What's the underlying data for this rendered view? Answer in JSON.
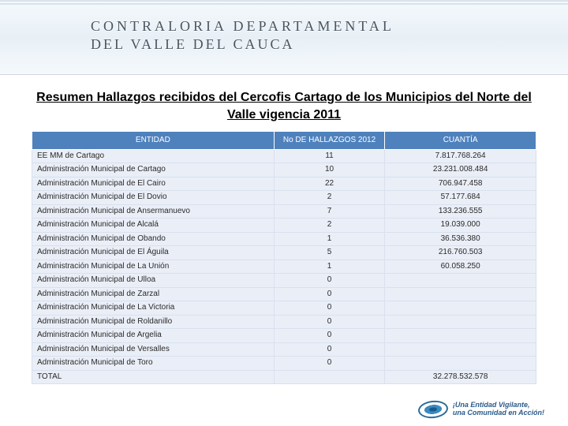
{
  "banner": {
    "line1": "CONTRALORIA DEPARTAMENTAL",
    "line2": "DEL VALLE DEL CAUCA"
  },
  "title": "Resumen Hallazgos recibidos del Cercofis Cartago de los Municipios del Norte del Valle vigencia 2011",
  "table": {
    "headers": {
      "entidad": "ENTIDAD",
      "num": "No DE HALLAZGOS 2012",
      "cuantia": "CUANTÍA"
    },
    "header_bg": "#4f81bd",
    "header_color": "#ffffff",
    "row_bg": "#eaeef7",
    "border_color": "#d9e1ee",
    "font_size": 10,
    "rows": [
      {
        "entidad": "EE MM de Cartago",
        "num": "11",
        "cuantia": "7.817.768.264"
      },
      {
        "entidad": "Administración Municipal de Cartago",
        "num": "10",
        "cuantia": "23.231.008.484"
      },
      {
        "entidad": "Administración Municipal de El Cairo",
        "num": "22",
        "cuantia": "706.947.458"
      },
      {
        "entidad": "Administración Municipal de El Dovio",
        "num": "2",
        "cuantia": "57.177.684"
      },
      {
        "entidad": "Administración Municipal de Ansermanuevo",
        "num": "7",
        "cuantia": "133.236.555"
      },
      {
        "entidad": "Administración Municipal de Alcalá",
        "num": "2",
        "cuantia": "19.039.000"
      },
      {
        "entidad": "Administración Municipal de Obando",
        "num": "1",
        "cuantia": "36.536.380"
      },
      {
        "entidad": "Administración Municipal de El Águila",
        "num": "5",
        "cuantia": "216.760.503"
      },
      {
        "entidad": "Administración Municipal de La Unión",
        "num": "1",
        "cuantia": "60.058.250"
      },
      {
        "entidad": "Administración Municipal de Ulloa",
        "num": "0",
        "cuantia": ""
      },
      {
        "entidad": "Administración Municipal de Zarzal",
        "num": "0",
        "cuantia": ""
      },
      {
        "entidad": "Administración Municipal de La Victoria",
        "num": "0",
        "cuantia": ""
      },
      {
        "entidad": "Administración Municipal de Roldanillo",
        "num": "0",
        "cuantia": ""
      },
      {
        "entidad": "Administración Municipal de Argelia",
        "num": "0",
        "cuantia": ""
      },
      {
        "entidad": "Administración Municipal de Versalles",
        "num": "0",
        "cuantia": ""
      },
      {
        "entidad": "Administración Municipal de Toro",
        "num": "0",
        "cuantia": ""
      },
      {
        "entidad": "TOTAL",
        "num": "",
        "cuantia": "32.278.532.578"
      }
    ]
  },
  "footer": {
    "line1": "¡Una Entidad Vigilante,",
    "line2": "una Comunidad en Acción!"
  }
}
